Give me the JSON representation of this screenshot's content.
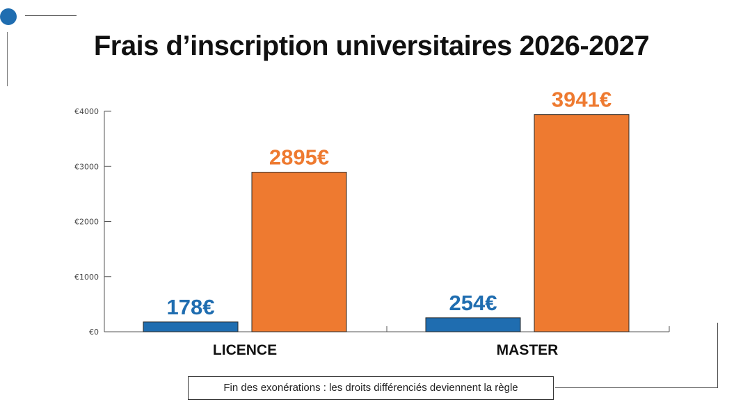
{
  "title": "Frais d’inscription universitaires 2026-2027",
  "caption": "Fin des exonérations : les droits différenciés deviennent la règle",
  "colors": {
    "blue": "#1f6db0",
    "orange": "#ee7a30",
    "axis": "#555555"
  },
  "chart_data": {
    "type": "bar",
    "title": "Frais d’inscription universitaires 2026-2027",
    "categories": [
      "LICENCE",
      "MASTER"
    ],
    "series": [
      {
        "values": [
          178,
          254
        ],
        "labels": [
          "178€",
          "254€"
        ],
        "color": "#1f6db0"
      },
      {
        "values": [
          2895,
          3941
        ],
        "labels": [
          "2895€",
          "3941€"
        ],
        "color": "#ee7a30"
      }
    ],
    "ylim": [
      0,
      4000
    ],
    "yticks": [
      0,
      1000,
      2000,
      3000,
      4000
    ],
    "ytick_labels": [
      "€0",
      "€1000",
      "€2000",
      "€3000",
      "€4000"
    ],
    "grid": false,
    "legend": "none"
  }
}
